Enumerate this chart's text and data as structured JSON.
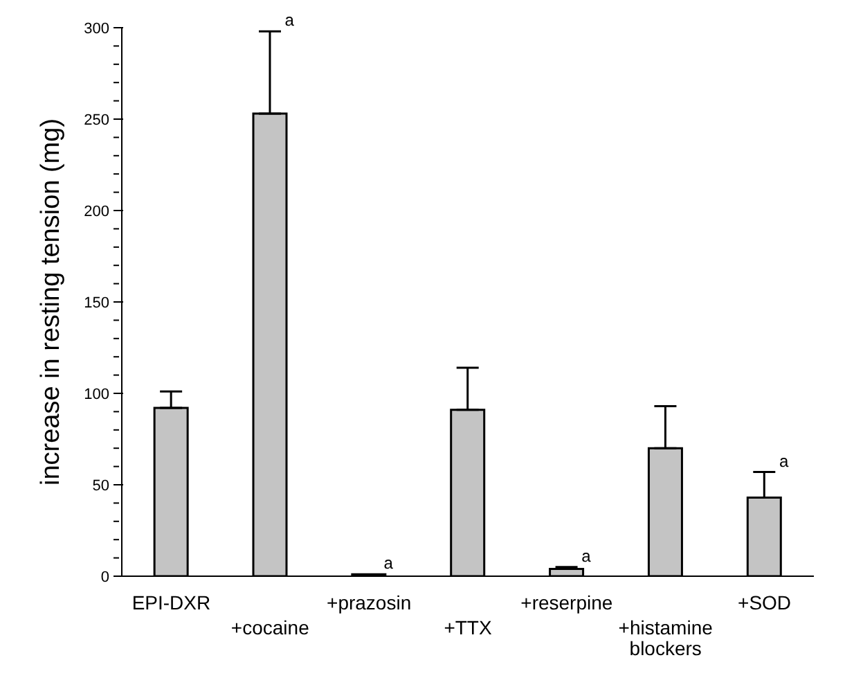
{
  "chart_data": {
    "type": "bar",
    "ylabel": "increase in resting tension (mg)",
    "categories": [
      "EPI-DXR",
      "+cocaine",
      "+prazosin",
      "+TTX",
      "+reserpine",
      "+histamine blockers",
      "+SOD"
    ],
    "values": [
      92,
      253,
      1,
      91,
      4,
      70,
      43
    ],
    "errors": [
      [
        92,
        101
      ],
      [
        253,
        298
      ],
      null,
      [
        91,
        114
      ],
      [
        4,
        5
      ],
      [
        70,
        93
      ],
      [
        43,
        57
      ]
    ],
    "color": "#c4c4c4",
    "ylim": [
      0,
      300
    ],
    "yticks": [
      0,
      {
        "value": 10,
        "label": null
      },
      {
        "value": 20,
        "label": null
      },
      {
        "value": 30,
        "label": null
      },
      {
        "value": 40,
        "label": null
      },
      50,
      {
        "value": 60,
        "label": null
      },
      {
        "value": 70,
        "label": null
      },
      {
        "value": 80,
        "label": null
      },
      {
        "value": 90,
        "label": null
      },
      100,
      {
        "value": 110,
        "label": null
      },
      {
        "value": 120,
        "label": null
      },
      {
        "value": 130,
        "label": null
      },
      {
        "value": 140,
        "label": null
      },
      150,
      {
        "value": 160,
        "label": null
      },
      {
        "value": 170,
        "label": null
      },
      {
        "value": 180,
        "label": null
      },
      {
        "value": 190,
        "label": null
      },
      200,
      {
        "value": 210,
        "label": null
      },
      {
        "value": 220,
        "label": null
      },
      {
        "value": 230,
        "label": null
      },
      {
        "value": 240,
        "label": null
      },
      250,
      {
        "value": 260,
        "label": null
      },
      {
        "value": 270,
        "label": null
      },
      {
        "value": 280,
        "label": null
      },
      {
        "value": 290,
        "label": null
      },
      300
    ],
    "annotations": [
      {
        "text": "a",
        "x": "+cocaine",
        "y": 298
      },
      {
        "text": "a",
        "x": "+prazosin",
        "y": 1
      },
      {
        "text": "a",
        "x": "+reserpine",
        "y": 5
      },
      {
        "text": "a",
        "x": "+SOD",
        "y": 57
      }
    ],
    "grid": false,
    "legend": false
  }
}
